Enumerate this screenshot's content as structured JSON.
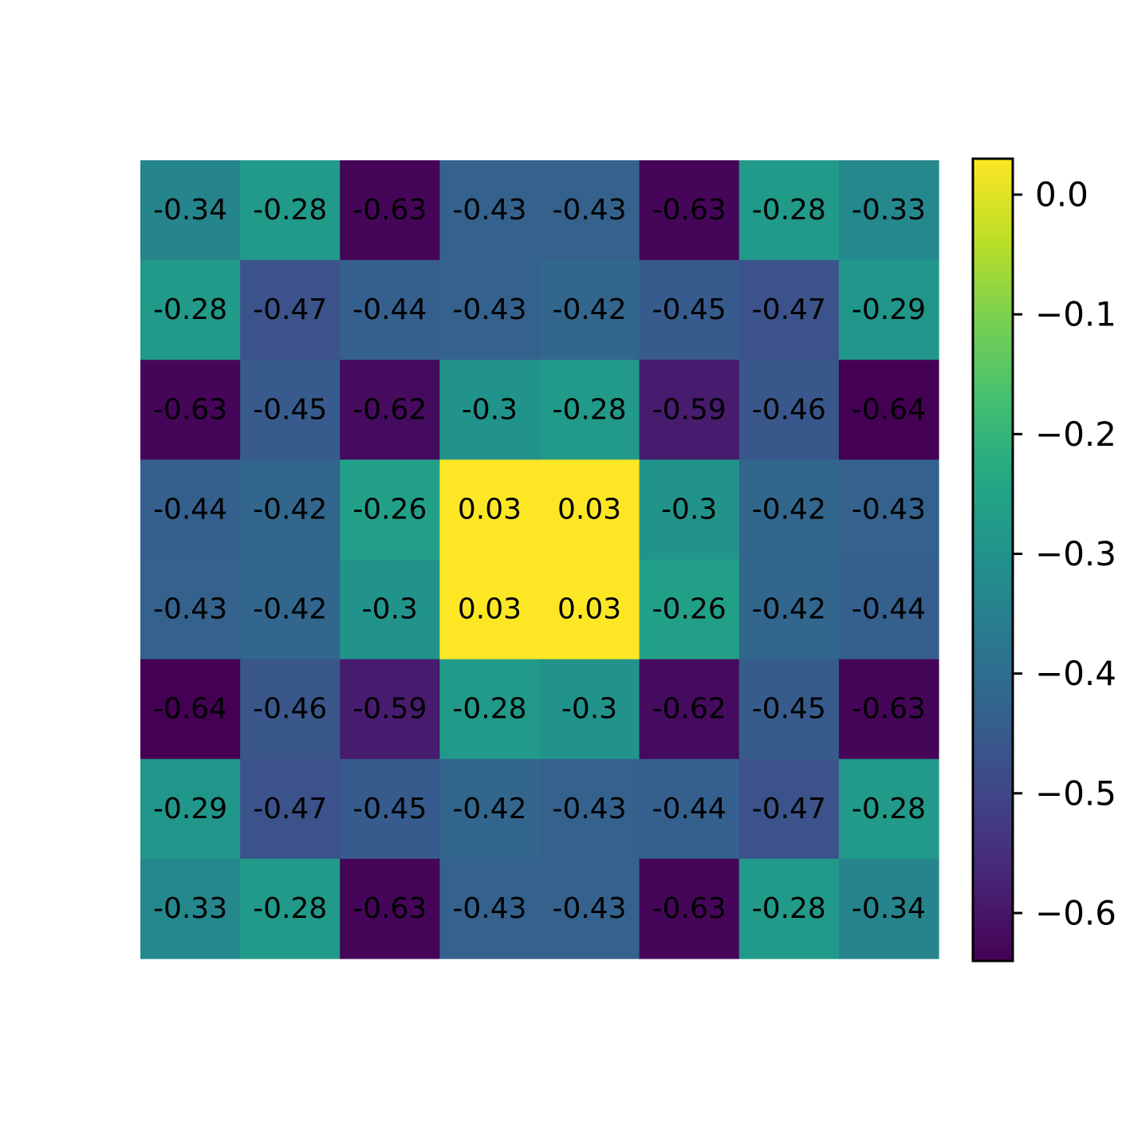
{
  "chart_data": {
    "type": "heatmap",
    "colormap": "viridis",
    "rows": 8,
    "cols": 8,
    "values": [
      [
        -0.34,
        -0.28,
        -0.63,
        -0.43,
        -0.43,
        -0.63,
        -0.28,
        -0.33
      ],
      [
        -0.28,
        -0.47,
        -0.44,
        -0.43,
        -0.42,
        -0.45,
        -0.47,
        -0.29
      ],
      [
        -0.63,
        -0.45,
        -0.62,
        -0.3,
        -0.28,
        -0.59,
        -0.46,
        -0.64
      ],
      [
        -0.44,
        -0.42,
        -0.26,
        0.03,
        0.03,
        -0.3,
        -0.42,
        -0.43
      ],
      [
        -0.43,
        -0.42,
        -0.3,
        0.03,
        0.03,
        -0.26,
        -0.42,
        -0.44
      ],
      [
        -0.64,
        -0.46,
        -0.59,
        -0.28,
        -0.3,
        -0.62,
        -0.45,
        -0.63
      ],
      [
        -0.29,
        -0.47,
        -0.45,
        -0.42,
        -0.43,
        -0.44,
        -0.47,
        -0.28
      ],
      [
        -0.33,
        -0.28,
        -0.63,
        -0.43,
        -0.43,
        -0.63,
        -0.28,
        -0.34
      ]
    ],
    "cell_labels": [
      [
        "-0.34",
        "-0.28",
        "-0.63",
        "-0.43",
        "-0.43",
        "-0.63",
        "-0.28",
        "-0.33"
      ],
      [
        "-0.28",
        "-0.47",
        "-0.44",
        "-0.43",
        "-0.42",
        "-0.45",
        "-0.47",
        "-0.29"
      ],
      [
        "-0.63",
        "-0.45",
        "-0.62",
        "-0.3",
        "-0.28",
        "-0.59",
        "-0.46",
        "-0.64"
      ],
      [
        "-0.44",
        "-0.42",
        "-0.26",
        "0.03",
        "0.03",
        "-0.3",
        "-0.42",
        "-0.43"
      ],
      [
        "-0.43",
        "-0.42",
        "-0.3",
        "0.03",
        "0.03",
        "-0.26",
        "-0.42",
        "-0.44"
      ],
      [
        "-0.64",
        "-0.46",
        "-0.59",
        "-0.28",
        "-0.3",
        "-0.62",
        "-0.45",
        "-0.63"
      ],
      [
        "-0.29",
        "-0.47",
        "-0.45",
        "-0.42",
        "-0.43",
        "-0.44",
        "-0.47",
        "-0.28"
      ],
      [
        "-0.33",
        "-0.28",
        "-0.63",
        "-0.43",
        "-0.43",
        "-0.63",
        "-0.28",
        "-0.34"
      ]
    ],
    "colorbar": {
      "vmin": -0.64,
      "vmax": 0.03,
      "ticks": [
        0.0,
        -0.1,
        -0.2,
        -0.3,
        -0.4,
        -0.5,
        -0.6
      ],
      "tick_labels": [
        "0.0",
        "−0.1",
        "−0.2",
        "−0.3",
        "−0.4",
        "−0.5",
        "−0.6"
      ]
    },
    "title": "",
    "xlabel": "",
    "ylabel": "",
    "grid": false,
    "axes_visible": false
  }
}
